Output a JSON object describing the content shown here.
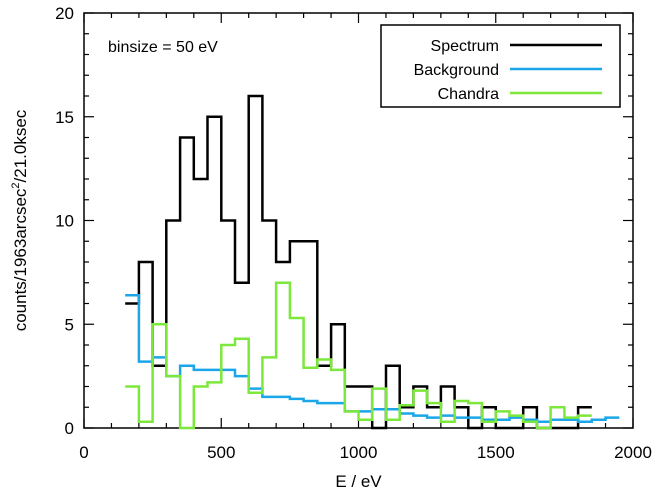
{
  "chart_data": {
    "type": "line",
    "step": true,
    "xlabel": "E / eV",
    "ylabel": "counts/1963arcsec",
    "ylabel_sup": "2",
    "ylabel_tail": "/21.0ksec",
    "xlim": [
      0,
      2000
    ],
    "ylim": [
      0,
      20
    ],
    "xticks": [
      0,
      500,
      1000,
      1500,
      2000
    ],
    "yticks": [
      0,
      5,
      10,
      15,
      20
    ],
    "grid": false,
    "legend_position": "top-right",
    "annotation": "binsize = 50 eV",
    "series": [
      {
        "name": "Spectrum",
        "color": "#000000",
        "x": [
          175,
          225,
          275,
          325,
          375,
          425,
          475,
          525,
          575,
          625,
          675,
          725,
          775,
          825,
          875,
          925,
          975,
          1025,
          1075,
          1125,
          1175,
          1225,
          1275,
          1325,
          1375,
          1425,
          1475,
          1525,
          1575,
          1625,
          1675,
          1725,
          1775,
          1825
        ],
        "values": [
          6,
          8,
          3,
          10,
          14,
          12,
          15,
          10,
          7,
          16,
          10,
          8,
          9,
          9,
          3,
          5,
          2,
          2,
          0,
          3,
          1,
          2,
          1,
          2,
          1,
          0,
          1,
          0,
          0,
          1,
          0,
          0,
          0,
          1
        ]
      },
      {
        "name": "Background",
        "color": "#1aa6e8",
        "x": [
          175,
          225,
          275,
          325,
          375,
          425,
          475,
          525,
          575,
          625,
          675,
          725,
          775,
          825,
          875,
          925,
          975,
          1025,
          1075,
          1125,
          1175,
          1225,
          1275,
          1325,
          1375,
          1425,
          1475,
          1525,
          1575,
          1625,
          1675,
          1725,
          1775,
          1825,
          1875,
          1925
        ],
        "values": [
          6.4,
          3.2,
          3.4,
          2.5,
          3.0,
          2.8,
          2.8,
          2.8,
          2.5,
          1.9,
          1.5,
          1.5,
          1.4,
          1.3,
          1.2,
          1.2,
          0.8,
          0.8,
          0.9,
          0.9,
          0.7,
          0.6,
          0.5,
          0.6,
          0.5,
          0.5,
          0.4,
          0.4,
          0.5,
          0.4,
          0.3,
          0.4,
          0.4,
          0.3,
          0.4,
          0.5
        ]
      },
      {
        "name": "Chandra",
        "color": "#7de83c",
        "x": [
          175,
          225,
          275,
          325,
          375,
          425,
          475,
          525,
          575,
          625,
          675,
          725,
          775,
          825,
          875,
          925,
          975,
          1025,
          1075,
          1125,
          1175,
          1225,
          1275,
          1325,
          1375,
          1425,
          1475,
          1525,
          1575,
          1625,
          1675,
          1725,
          1775,
          1825
        ],
        "values": [
          2,
          0.3,
          5,
          2.5,
          0,
          2,
          2.2,
          4,
          4.3,
          1.7,
          3.4,
          7,
          5.3,
          2.9,
          3.3,
          2.8,
          0.8,
          0.4,
          1.9,
          0.4,
          1.1,
          1.8,
          1.2,
          0.3,
          1.3,
          1.2,
          0.3,
          0.8,
          0.6,
          0.3,
          0,
          1,
          0.5,
          0.6
        ]
      }
    ]
  }
}
